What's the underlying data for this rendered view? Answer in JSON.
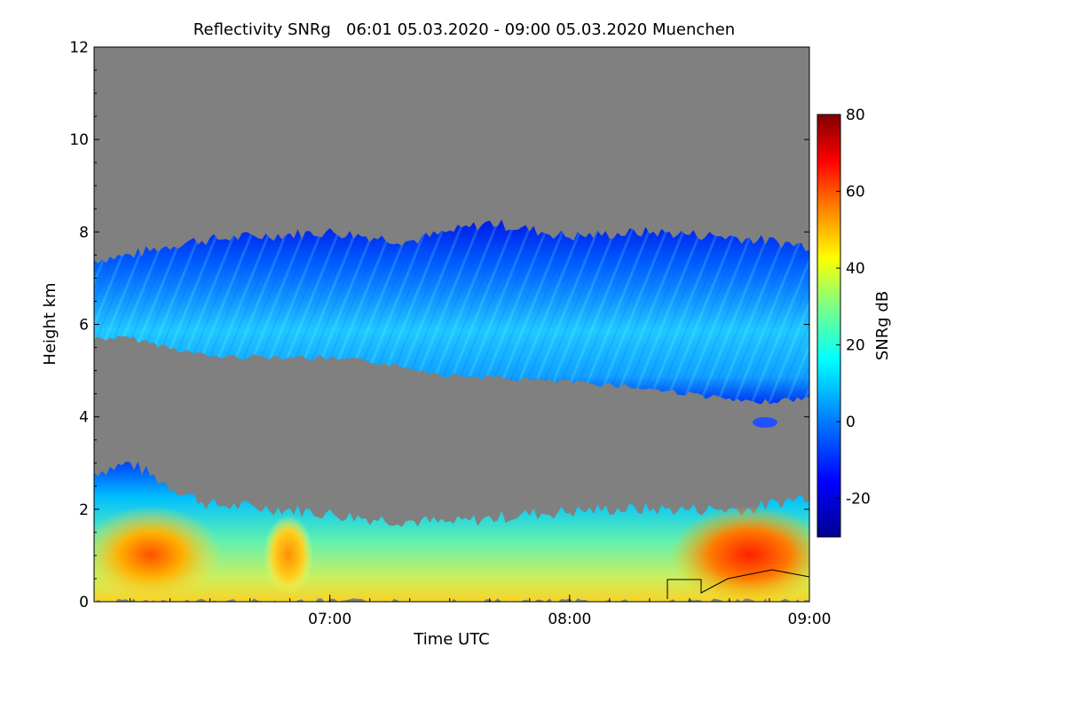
{
  "chart_data": {
    "type": "heatmap",
    "title": "Reflectivity SNRg   06:01 05.03.2020 - 09:00 05.03.2020 Muenchen",
    "xlabel": "Time UTC",
    "ylabel": "Height km",
    "x_ticks": [
      "07:00",
      "08:00",
      "09:00"
    ],
    "x_tick_values_min": [
      420,
      480,
      540
    ],
    "xlim_min": [
      361,
      540
    ],
    "y_ticks": [
      "0",
      "2",
      "4",
      "6",
      "8",
      "10",
      "12"
    ],
    "y_tick_values": [
      0,
      2,
      4,
      6,
      8,
      10,
      12
    ],
    "ylim": [
      0,
      12
    ],
    "colorbar": {
      "label": "SNRg dB",
      "range": [
        -30,
        80
      ],
      "ticks": [
        "-20",
        "0",
        "20",
        "40",
        "60",
        "80"
      ],
      "tick_values": [
        -20,
        0,
        20,
        40,
        60,
        80
      ],
      "colormap": [
        "#00008f",
        "#0000ff",
        "#0080ff",
        "#00ffff",
        "#80ff80",
        "#ffff00",
        "#ff8000",
        "#ff0000",
        "#800000"
      ]
    },
    "background_color": "#808080",
    "layers": [
      {
        "layer": "upper-cloud",
        "top_km": [
          [
            361,
            7.4
          ],
          [
            370,
            7.5
          ],
          [
            385,
            7.8
          ],
          [
            400,
            7.9
          ],
          [
            420,
            8.0
          ],
          [
            440,
            7.8
          ],
          [
            460,
            8.2
          ],
          [
            480,
            7.9
          ],
          [
            500,
            8.0
          ],
          [
            520,
            7.9
          ],
          [
            540,
            7.7
          ]
        ],
        "base_km": [
          [
            361,
            5.7
          ],
          [
            370,
            5.7
          ],
          [
            380,
            5.5
          ],
          [
            390,
            5.3
          ],
          [
            410,
            5.3
          ],
          [
            430,
            5.2
          ],
          [
            450,
            4.9
          ],
          [
            470,
            4.8
          ],
          [
            490,
            4.7
          ],
          [
            510,
            4.5
          ],
          [
            525,
            4.3
          ],
          [
            540,
            4.4
          ]
        ],
        "typical_snr_db": [
          -15,
          10
        ]
      },
      {
        "layer": "lower-cloud",
        "top_km": [
          [
            361,
            2.8
          ],
          [
            370,
            3.0
          ],
          [
            380,
            2.5
          ],
          [
            390,
            2.1
          ],
          [
            410,
            2.0
          ],
          [
            430,
            1.8
          ],
          [
            450,
            1.7
          ],
          [
            470,
            1.9
          ],
          [
            490,
            2.0
          ],
          [
            510,
            2.0
          ],
          [
            525,
            2.0
          ],
          [
            540,
            2.3
          ]
        ],
        "base_km": [
          [
            361,
            0.0
          ],
          [
            540,
            0.0
          ]
        ],
        "typical_snr_db": [
          -10,
          60
        ]
      }
    ]
  }
}
